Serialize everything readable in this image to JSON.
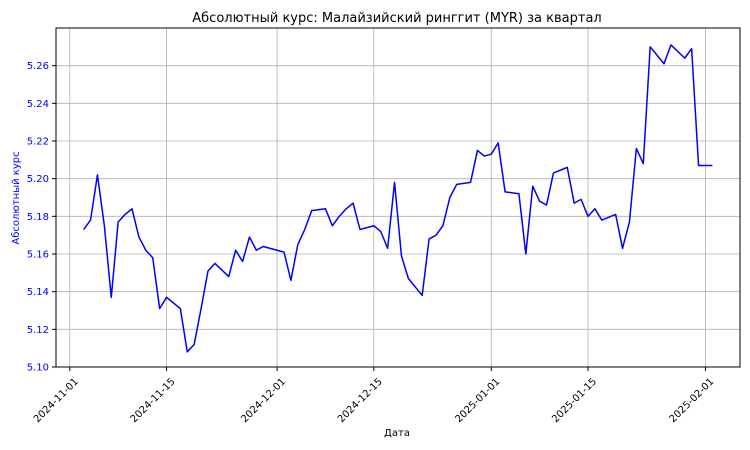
{
  "chart_data": {
    "type": "line",
    "title": "Абсолютный курс: Малайзийский ринггит (MYR) за квартал",
    "xlabel": "Дата",
    "ylabel": "Абсолютный курс",
    "ylim": [
      5.1,
      5.28
    ],
    "xlim": [
      "2024-10-30",
      "2025-02-06"
    ],
    "grid": true,
    "line_color": "#0000ff",
    "ytick_color": "#0000ff",
    "x_ticks": [
      "2024-11-01",
      "2024-11-15",
      "2024-12-01",
      "2024-12-15",
      "2025-01-01",
      "2025-01-15",
      "2025-02-01"
    ],
    "y_ticks": [
      5.1,
      5.12,
      5.14,
      5.16,
      5.18,
      5.2,
      5.22,
      5.24,
      5.26
    ],
    "series": [
      {
        "points": [
          [
            "2024-11-03",
            5.173
          ],
          [
            "2024-11-04",
            5.178
          ],
          [
            "2024-11-05",
            5.202
          ],
          [
            "2024-11-06",
            5.175
          ],
          [
            "2024-11-07",
            5.137
          ],
          [
            "2024-11-08",
            5.177
          ],
          [
            "2024-11-09",
            5.181
          ],
          [
            "2024-11-10",
            5.184
          ],
          [
            "2024-11-11",
            5.169
          ],
          [
            "2024-11-12",
            5.162
          ],
          [
            "2024-11-13",
            5.158
          ],
          [
            "2024-11-14",
            5.131
          ],
          [
            "2024-11-15",
            5.137
          ],
          [
            "2024-11-17",
            5.131
          ],
          [
            "2024-11-18",
            5.108
          ],
          [
            "2024-11-19",
            5.112
          ],
          [
            "2024-11-20",
            5.131
          ],
          [
            "2024-11-21",
            5.151
          ],
          [
            "2024-11-22",
            5.155
          ],
          [
            "2024-11-24",
            5.148
          ],
          [
            "2024-11-25",
            5.162
          ],
          [
            "2024-11-26",
            5.156
          ],
          [
            "2024-11-27",
            5.169
          ],
          [
            "2024-11-28",
            5.162
          ],
          [
            "2024-11-29",
            5.164
          ],
          [
            "2024-12-02",
            5.161
          ],
          [
            "2024-12-03",
            5.146
          ],
          [
            "2024-12-04",
            5.165
          ],
          [
            "2024-12-05",
            5.173
          ],
          [
            "2024-12-06",
            5.183
          ],
          [
            "2024-12-08",
            5.184
          ],
          [
            "2024-12-09",
            5.175
          ],
          [
            "2024-12-10",
            5.18
          ],
          [
            "2024-12-11",
            5.184
          ],
          [
            "2024-12-12",
            5.187
          ],
          [
            "2024-12-13",
            5.173
          ],
          [
            "2024-12-15",
            5.175
          ],
          [
            "2024-12-16",
            5.172
          ],
          [
            "2024-12-17",
            5.163
          ],
          [
            "2024-12-18",
            5.198
          ],
          [
            "2024-12-19",
            5.159
          ],
          [
            "2024-12-20",
            5.147
          ],
          [
            "2024-12-22",
            5.138
          ],
          [
            "2024-12-23",
            5.168
          ],
          [
            "2024-12-24",
            5.17
          ],
          [
            "2024-12-25",
            5.175
          ],
          [
            "2024-12-26",
            5.19
          ],
          [
            "2024-12-27",
            5.197
          ],
          [
            "2024-12-29",
            5.198
          ],
          [
            "2024-12-30",
            5.215
          ],
          [
            "2024-12-31",
            5.212
          ],
          [
            "2025-01-01",
            5.213
          ],
          [
            "2025-01-02",
            5.219
          ],
          [
            "2025-01-03",
            5.193
          ],
          [
            "2025-01-05",
            5.192
          ],
          [
            "2025-01-06",
            5.16
          ],
          [
            "2025-01-07",
            5.196
          ],
          [
            "2025-01-08",
            5.188
          ],
          [
            "2025-01-09",
            5.186
          ],
          [
            "2025-01-10",
            5.203
          ],
          [
            "2025-01-12",
            5.206
          ],
          [
            "2025-01-13",
            5.187
          ],
          [
            "2025-01-14",
            5.189
          ],
          [
            "2025-01-15",
            5.18
          ],
          [
            "2025-01-16",
            5.184
          ],
          [
            "2025-01-17",
            5.178
          ],
          [
            "2025-01-19",
            5.181
          ],
          [
            "2025-01-20",
            5.163
          ],
          [
            "2025-01-21",
            5.177
          ],
          [
            "2025-01-22",
            5.216
          ],
          [
            "2025-01-23",
            5.208
          ],
          [
            "2025-01-24",
            5.27
          ],
          [
            "2025-01-26",
            5.261
          ],
          [
            "2025-01-27",
            5.271
          ],
          [
            "2025-01-29",
            5.264
          ],
          [
            "2025-01-30",
            5.269
          ],
          [
            "2025-01-31",
            5.207
          ],
          [
            "2025-02-01",
            5.207
          ],
          [
            "2025-02-02",
            5.207
          ]
        ]
      }
    ]
  }
}
